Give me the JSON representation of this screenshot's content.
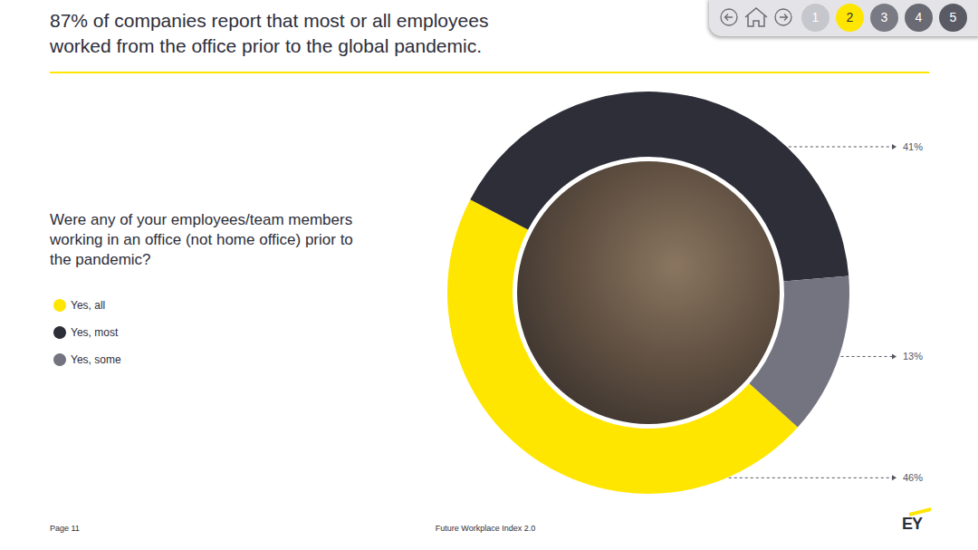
{
  "chart_data": {
    "type": "pie",
    "title": "87% of companies report that most or all employees\nworked from the office prior to the global pandemic.",
    "subtitle": "Were any of your employees/team members\nworking in an office (not home office) prior to\nthe pandemic?",
    "categories": [
      "Yes, all",
      "Yes, most",
      "Yes, some"
    ],
    "values": [
      46,
      41,
      13
    ],
    "value_labels": [
      "46%",
      "41%",
      "13%"
    ],
    "colors": [
      "#ffe600",
      "#2e2e38",
      "#747480"
    ],
    "data_labels": true,
    "legend": "left"
  },
  "page": {
    "page_number": "Page 11",
    "report": "Future Workplace Index 2.0",
    "logo": "EY",
    "nav": {
      "pages": [
        "1",
        "2",
        "3",
        "4",
        "5"
      ],
      "active_page": "2"
    }
  }
}
